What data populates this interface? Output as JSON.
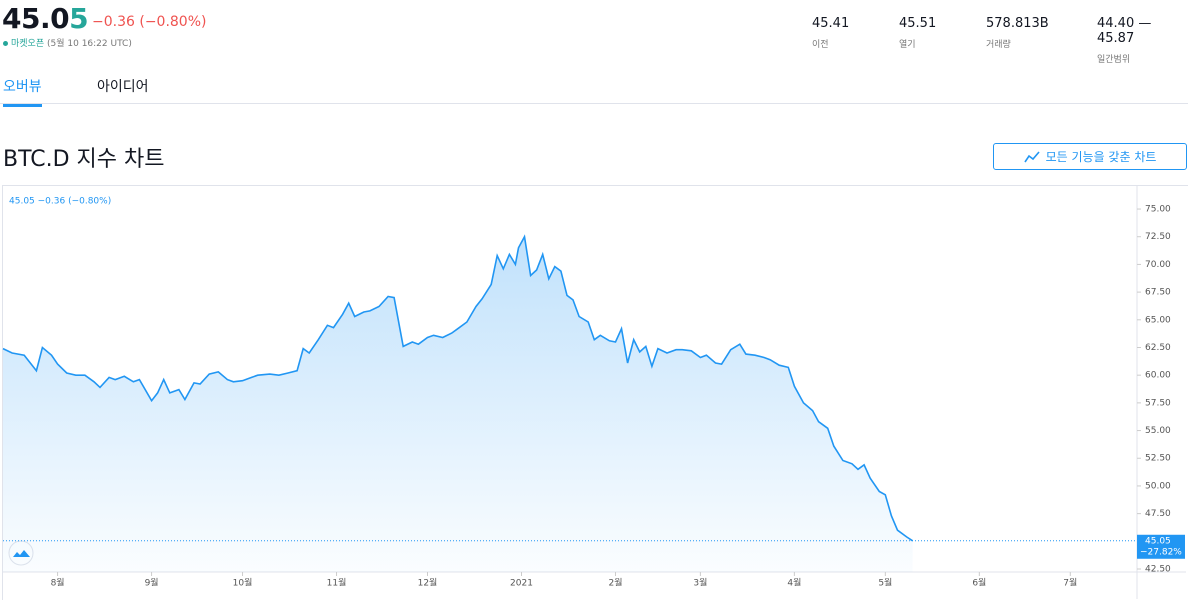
{
  "header": {
    "price": "45.05",
    "change": "−0.36 (−0.80%)",
    "market_status": "마켓오픈",
    "market_time": "(5월 10 16:22 UTC)",
    "stats": [
      {
        "value": "45.41",
        "label": "이전"
      },
      {
        "value": "45.51",
        "label": "열기"
      },
      {
        "value": "578.813B",
        "label": "거래량"
      },
      {
        "value": "44.40 — 45.87",
        "label": "일간범위"
      }
    ]
  },
  "tabs": [
    "오버뷰",
    "아이디어"
  ],
  "section_title": "BTC.D 지수 차트",
  "button": "모든 기능을 갖춘 차트",
  "chart_data": {
    "type": "area",
    "legend_text": "45.05 −0.36 (−0.80%)",
    "last_value_label": "45.05",
    "change_label": "−27.82%",
    "xlim": [
      -18,
      356
    ],
    "ylim": [
      42.23,
      77.08
    ],
    "xticks": [
      {
        "value": 0,
        "label": "8월"
      },
      {
        "value": 31,
        "label": "9월"
      },
      {
        "value": 61,
        "label": "10월"
      },
      {
        "value": 92,
        "label": "11월"
      },
      {
        "value": 122,
        "label": "12월"
      },
      {
        "value": 153,
        "label": "2021"
      },
      {
        "value": 184,
        "label": "2월"
      },
      {
        "value": 212,
        "label": "3월"
      },
      {
        "value": 243,
        "label": "4월"
      },
      {
        "value": 273,
        "label": "5월"
      },
      {
        "value": 304,
        "label": "6월"
      },
      {
        "value": 334,
        "label": "7월"
      }
    ],
    "yticks": [
      {
        "value": 42.5,
        "label": "42.50"
      },
      {
        "value": 45,
        "label": "45.00"
      },
      {
        "value": 47.5,
        "label": "47.50"
      },
      {
        "value": 50,
        "label": "50.00"
      },
      {
        "value": 52.5,
        "label": "52.50"
      },
      {
        "value": 55,
        "label": "55.00"
      },
      {
        "value": 57.5,
        "label": "57.50"
      },
      {
        "value": 60,
        "label": "60.00"
      },
      {
        "value": 62.5,
        "label": "62.50"
      },
      {
        "value": 65,
        "label": "65.00"
      },
      {
        "value": 67.5,
        "label": "67.50"
      },
      {
        "value": 70,
        "label": "70.00"
      },
      {
        "value": 72.5,
        "label": "72.50"
      },
      {
        "value": 75,
        "label": "75.00"
      }
    ],
    "color": "#2196f3",
    "x": [
      -18,
      -15,
      -11,
      -7,
      -5,
      -2,
      0,
      3,
      6,
      9,
      12,
      14,
      17,
      19,
      22,
      25,
      27,
      31,
      33,
      35,
      37,
      40,
      42,
      45,
      47,
      50,
      53,
      56,
      58,
      61,
      64,
      66,
      70,
      73,
      76,
      79,
      81,
      83,
      86,
      89,
      91,
      94,
      96,
      98,
      101,
      103,
      106,
      109,
      111,
      114,
      117,
      119,
      122,
      124,
      127,
      130,
      132,
      135,
      138,
      140,
      143,
      145,
      147,
      149,
      151,
      152,
      154,
      156,
      158,
      160,
      162,
      164,
      166,
      168,
      170,
      172,
      175,
      177,
      179,
      182,
      184,
      186,
      188,
      190,
      192,
      194,
      196,
      198,
      201,
      204,
      206,
      209,
      212,
      214,
      217,
      219,
      222,
      225,
      227,
      230,
      233,
      235,
      238,
      241,
      243,
      246,
      249,
      251,
      254,
      256,
      259,
      262,
      264,
      266,
      268,
      271,
      273,
      275,
      277,
      280,
      282
    ],
    "values": [
      62.4,
      62.0,
      61.8,
      60.4,
      62.5,
      61.8,
      61.0,
      60.2,
      60.0,
      60.0,
      59.4,
      58.9,
      59.8,
      59.6,
      59.9,
      59.4,
      59.6,
      57.7,
      58.4,
      59.6,
      58.4,
      58.7,
      57.8,
      59.3,
      59.2,
      60.1,
      60.3,
      59.6,
      59.4,
      59.5,
      59.8,
      60.0,
      60.1,
      60.0,
      60.2,
      60.4,
      62.4,
      62.0,
      63.2,
      64.5,
      64.3,
      65.5,
      66.5,
      65.3,
      65.7,
      65.8,
      66.2,
      67.1,
      67.0,
      62.6,
      63.0,
      62.8,
      63.4,
      63.6,
      63.4,
      63.8,
      64.2,
      64.8,
      66.2,
      66.9,
      68.2,
      70.8,
      69.6,
      70.9,
      70.0,
      71.5,
      72.5,
      69.0,
      69.5,
      70.9,
      68.7,
      69.8,
      69.4,
      67.2,
      66.8,
      65.3,
      64.8,
      63.2,
      63.6,
      63.1,
      63.0,
      64.2,
      61.1,
      63.2,
      62.1,
      62.6,
      60.8,
      62.4,
      62.0,
      62.3,
      62.3,
      62.2,
      61.6,
      61.8,
      61.1,
      61.0,
      62.3,
      62.8,
      61.9,
      61.8,
      61.6,
      61.4,
      60.9,
      60.7,
      59.0,
      57.5,
      56.8,
      55.8,
      55.2,
      53.6,
      52.3,
      52.0,
      51.5,
      51.9,
      50.7,
      49.5,
      49.2,
      47.3,
      46.0,
      45.4,
      45.05
    ]
  }
}
